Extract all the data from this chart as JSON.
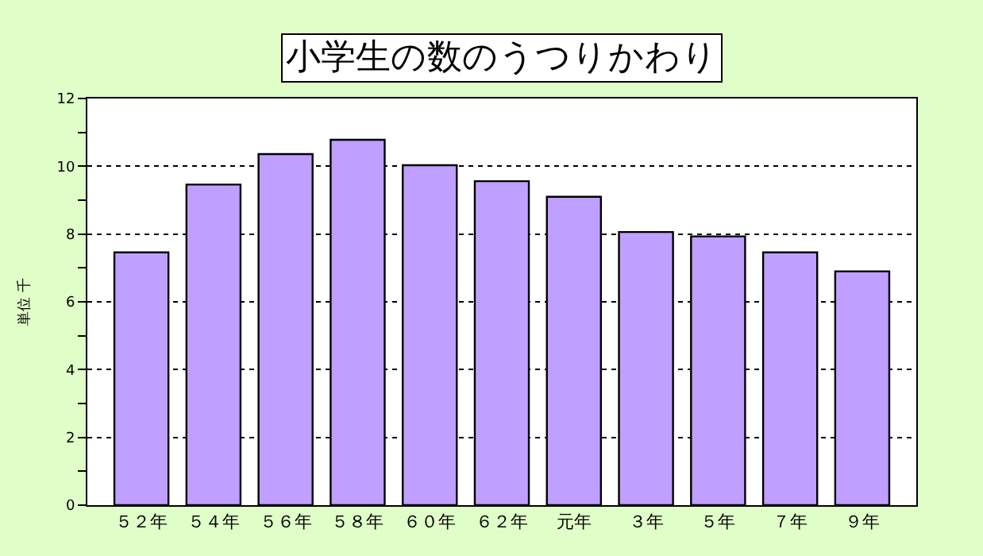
{
  "chart_data": {
    "type": "bar",
    "title": "小学生の数のうつりかわり",
    "ylabel": "単位 千",
    "categories": [
      "５２年",
      "５４年",
      "５６年",
      "５８年",
      "６０年",
      "６２年",
      "元年",
      "３年",
      "５年",
      "７年",
      "９年"
    ],
    "values": [
      7.46,
      9.46,
      10.36,
      10.78,
      10.03,
      9.56,
      9.1,
      8.06,
      7.93,
      7.46,
      6.9
    ],
    "color": "#bf9fff",
    "ylim": [
      0,
      12
    ],
    "yticks": [
      0,
      {
        "value": 1,
        "label": null
      },
      2,
      {
        "value": 3,
        "label": null
      },
      4,
      {
        "value": 5,
        "label": null
      },
      6,
      {
        "value": 7,
        "label": null
      },
      8,
      {
        "value": 9,
        "label": null
      },
      10,
      {
        "value": 11,
        "label": null
      },
      12
    ],
    "grid": "y",
    "legend": false
  }
}
